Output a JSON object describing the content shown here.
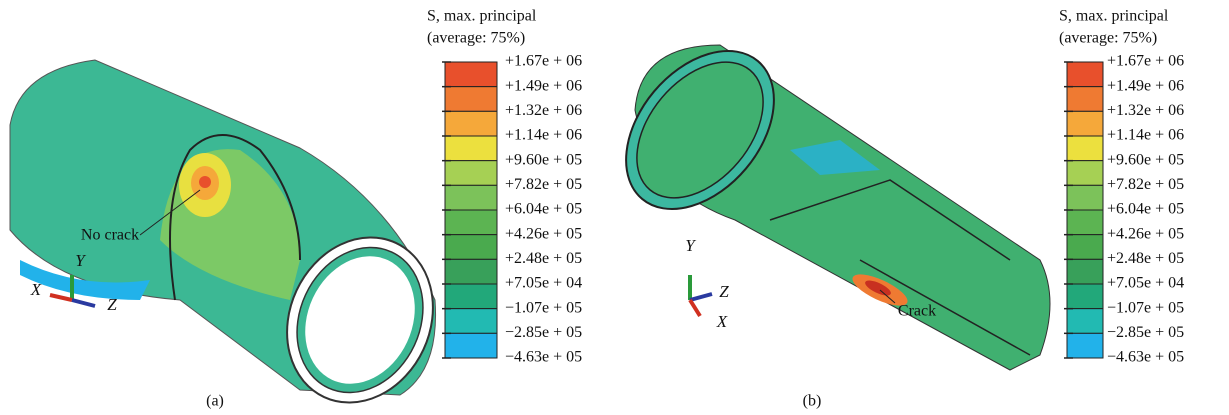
{
  "panels": [
    {
      "legend": {
        "title": [
          "S, max. principal",
          "(average: 75%)"
        ],
        "labels": [
          "+1.67e + 06",
          "+1.49e + 06",
          "+1.32e + 06",
          "+1.14e + 06",
          "+9.60e + 05",
          "+7.82e + 05",
          "+6.04e + 05",
          "+4.26e + 05",
          "+2.48e + 05",
          "+7.05e + 04",
          "−1.07e + 05",
          "−2.85e + 05",
          "−4.63e + 05"
        ],
        "colors": [
          "#e8502c",
          "#ef7a32",
          "#f5a83a",
          "#ece03e",
          "#a6d054",
          "#7cc25a",
          "#5cb452",
          "#4aaa4e",
          "#38a05a",
          "#22a87a",
          "#22bab2",
          "#22b2ea",
          "#ffffff"
        ]
      },
      "annotation": "No crack",
      "axes": {
        "x": "X",
        "y": "Y",
        "z": "Z"
      },
      "caption": "(a)"
    },
    {
      "legend": {
        "title": [
          "S, max. principal",
          "(average: 75%)"
        ],
        "labels": [
          "+1.67e + 06",
          "+1.49e + 06",
          "+1.32e + 06",
          "+1.14e + 06",
          "+9.60e + 05",
          "+7.82e + 05",
          "+6.04e + 05",
          "+4.26e + 05",
          "+2.48e + 05",
          "+7.05e + 04",
          "−1.07e + 05",
          "−2.85e + 05",
          "−4.63e + 05"
        ],
        "colors": [
          "#e8502c",
          "#ef7a32",
          "#f5a83a",
          "#ece03e",
          "#a6d054",
          "#7cc25a",
          "#5cb452",
          "#4aaa4e",
          "#38a05a",
          "#22a87a",
          "#22bab2",
          "#22b2ea",
          "#ffffff"
        ]
      },
      "annotation": "Crack",
      "axes": {
        "x": "X",
        "y": "Y",
        "z": "Z"
      },
      "caption": "(b)"
    }
  ]
}
